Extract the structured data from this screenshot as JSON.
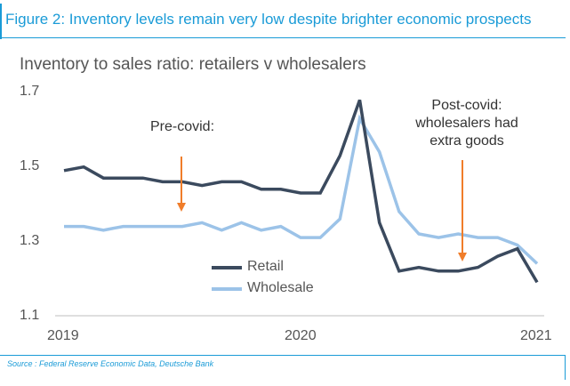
{
  "figure_title": "Figure 2: Inventory levels remain very low despite brighter economic prospects",
  "source": "Source : Federal Reserve Economic Data, Deutsche Bank",
  "chart_data": {
    "type": "line",
    "title": "Inventory to sales ratio: retailers v wholesalers",
    "xlabel": "",
    "ylabel": "",
    "ylim": [
      1.1,
      1.7
    ],
    "yticks": [
      "1.7",
      "1.5",
      "1.3",
      "1.1"
    ],
    "xticks": [
      "2019",
      "2020",
      "2021"
    ],
    "x": [
      "2019-01",
      "2019-02",
      "2019-03",
      "2019-04",
      "2019-05",
      "2019-06",
      "2019-07",
      "2019-08",
      "2019-09",
      "2019-10",
      "2019-11",
      "2019-12",
      "2020-01",
      "2020-02",
      "2020-03",
      "2020-04",
      "2020-05",
      "2020-06",
      "2020-07",
      "2020-08",
      "2020-09",
      "2020-10",
      "2020-11",
      "2020-12",
      "2021-01"
    ],
    "series": [
      {
        "name": "Retail",
        "color": "#3b4a5e",
        "values": [
          1.49,
          1.5,
          1.47,
          1.47,
          1.47,
          1.46,
          1.46,
          1.45,
          1.46,
          1.46,
          1.44,
          1.44,
          1.43,
          1.43,
          1.53,
          1.68,
          1.35,
          1.22,
          1.23,
          1.22,
          1.22,
          1.23,
          1.26,
          1.28,
          1.19
        ]
      },
      {
        "name": "Wholesale",
        "color": "#9cc3e8",
        "values": [
          1.34,
          1.34,
          1.33,
          1.34,
          1.34,
          1.34,
          1.34,
          1.35,
          1.33,
          1.35,
          1.33,
          1.34,
          1.31,
          1.31,
          1.36,
          1.63,
          1.54,
          1.38,
          1.32,
          1.31,
          1.32,
          1.31,
          1.31,
          1.29,
          1.24
        ]
      }
    ],
    "annotations": [
      {
        "id": "pre",
        "text": "Pre-covid:",
        "arrow_color": "#f07d2a"
      },
      {
        "id": "post",
        "lines": [
          "Post-covid:",
          "wholesalers had",
          "extra goods"
        ],
        "arrow_color": "#f07d2a"
      }
    ],
    "legend": "center"
  }
}
